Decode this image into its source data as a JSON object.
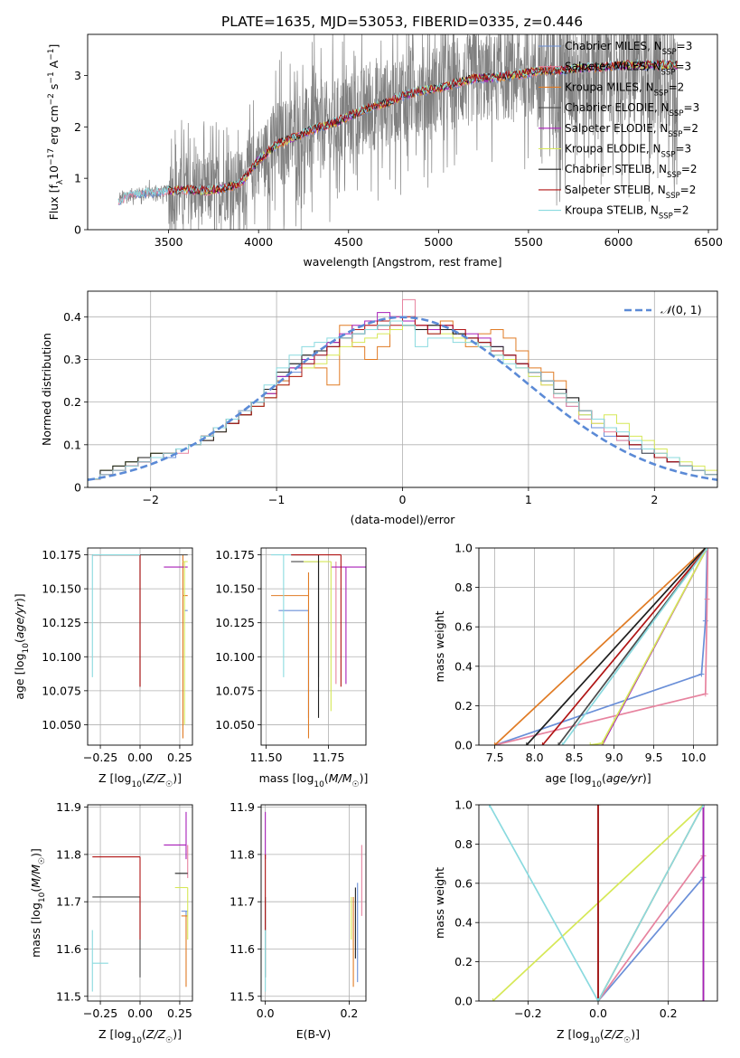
{
  "title": "PLATE=1635, MJD=53053, FIBERID=0335, z=0.446",
  "colors": {
    "series": [
      "#6a8fd8",
      "#e7839f",
      "#e07b24",
      "#4a4a4a",
      "#a81fb8",
      "#d6e857",
      "#1f1f1f",
      "#b01414",
      "#8adadf"
    ],
    "data_spectrum": "#808080",
    "normal_curve": "#5b8ad6",
    "grid": "#b0b0b0"
  },
  "models": [
    {
      "label": "Chabrier MILES, N",
      "sub": "SSP",
      "suffix": "=3",
      "name": "Chabrier MILES, NSSP=3"
    },
    {
      "label": "Salpeter MILES, N",
      "sub": "SSP",
      "suffix": "=3",
      "name": "Salpeter MILES, NSSP=3"
    },
    {
      "label": "Kroupa MILES, N",
      "sub": "SSP",
      "suffix": "=2",
      "name": "Kroupa MILES, NSSP=2"
    },
    {
      "label": "Chabrier ELODIE, N",
      "sub": "SSP",
      "suffix": "=3",
      "name": "Chabrier ELODIE, NSSP=3"
    },
    {
      "label": "Salpeter ELODIE, N",
      "sub": "SSP",
      "suffix": "=2",
      "name": "Salpeter ELODIE, NSSP=2"
    },
    {
      "label": "Kroupa ELODIE, N",
      "sub": "SSP",
      "suffix": "=3",
      "name": "Kroupa ELODIE, NSSP=3"
    },
    {
      "label": "Chabrier STELIB, N",
      "sub": "SSP",
      "suffix": "=2",
      "name": "Chabrier STELIB, NSSP=2"
    },
    {
      "label": "Salpeter STELIB, N",
      "sub": "SSP",
      "suffix": "=2",
      "name": "Salpeter STELIB, NSSP=2"
    },
    {
      "label": "Kroupa STELIB, N",
      "sub": "SSP",
      "suffix": "=2",
      "name": "Kroupa STELIB, NSSP=2"
    }
  ],
  "chart_data": [
    {
      "id": "spectrum",
      "type": "line",
      "xlabel": "wavelength [Angstrom, rest frame]",
      "ylabel": "Flux [f_λ 10^-17 erg cm^-2 s^-1 A^-1]",
      "xlim": [
        3050,
        6550
      ],
      "ylim": [
        0,
        3.8
      ],
      "xticks": [
        3500,
        4000,
        4500,
        5000,
        5500,
        6000,
        6500
      ],
      "yticks": [
        0,
        1,
        2,
        3
      ],
      "x_range_data": [
        3220,
        6330
      ],
      "grid": false,
      "legend": "upper right",
      "continuum_model": {
        "x": [
          3220,
          3300,
          3400,
          3500,
          3600,
          3700,
          3800,
          3900,
          4000,
          4100,
          4200,
          4300,
          4400,
          4500,
          4600,
          4700,
          4800,
          4900,
          5000,
          5100,
          5200,
          5300,
          5400,
          5500,
          5600,
          5700,
          5800,
          5900,
          6000,
          6100,
          6200,
          6330
        ],
        "y": [
          0.55,
          0.7,
          0.72,
          0.75,
          0.78,
          0.75,
          0.8,
          0.9,
          1.35,
          1.65,
          1.8,
          1.95,
          2.05,
          2.2,
          2.35,
          2.45,
          2.6,
          2.7,
          2.75,
          2.85,
          2.95,
          2.95,
          3.0,
          3.05,
          3.1,
          3.1,
          3.15,
          3.15,
          3.2,
          3.2,
          3.2,
          3.2
        ]
      }
    },
    {
      "id": "residuals",
      "type": "histogram",
      "xlabel": "(data-model)/error",
      "ylabel": "Normed distribution",
      "xlim": [
        -2.5,
        2.5
      ],
      "ylim": [
        0,
        0.46
      ],
      "xticks": [
        -2,
        -1,
        0,
        1,
        2
      ],
      "yticks": [
        0.0,
        0.1,
        0.2,
        0.3,
        0.4
      ],
      "grid": true,
      "legend": "upper right",
      "legend_label": "N(0,1)",
      "bins": [
        -2.5,
        -2.4,
        -2.3,
        -2.2,
        -2.1,
        -2.0,
        -1.9,
        -1.8,
        -1.7,
        -1.6,
        -1.5,
        -1.4,
        -1.3,
        -1.2,
        -1.1,
        -1.0,
        -0.9,
        -0.8,
        -0.7,
        -0.6,
        -0.5,
        -0.4,
        -0.3,
        -0.2,
        -0.1,
        0.0,
        0.1,
        0.2,
        0.3,
        0.4,
        0.5,
        0.6,
        0.7,
        0.8,
        0.9,
        1.0,
        1.1,
        1.2,
        1.3,
        1.4,
        1.5,
        1.6,
        1.7,
        1.8,
        1.9,
        2.0,
        2.1,
        2.2,
        2.3,
        2.4,
        2.5
      ],
      "series": [
        {
          "values": [
            0.02,
            0.04,
            0.05,
            0.06,
            0.07,
            0.08,
            0.07,
            0.09,
            0.1,
            0.12,
            0.14,
            0.16,
            0.17,
            0.19,
            0.22,
            0.25,
            0.27,
            0.29,
            0.31,
            0.33,
            0.35,
            0.36,
            0.37,
            0.38,
            0.37,
            0.38,
            0.37,
            0.36,
            0.37,
            0.36,
            0.35,
            0.34,
            0.33,
            0.31,
            0.29,
            0.26,
            0.25,
            0.22,
            0.19,
            0.17,
            0.14,
            0.12,
            0.11,
            0.09,
            0.08,
            0.07,
            0.06,
            0.05,
            0.04,
            0.03
          ]
        },
        {
          "values": [
            0.02,
            0.03,
            0.04,
            0.05,
            0.06,
            0.07,
            0.08,
            0.08,
            0.1,
            0.11,
            0.13,
            0.15,
            0.18,
            0.2,
            0.23,
            0.26,
            0.28,
            0.3,
            0.32,
            0.34,
            0.35,
            0.36,
            0.38,
            0.37,
            0.39,
            0.44,
            0.38,
            0.37,
            0.38,
            0.36,
            0.35,
            0.33,
            0.31,
            0.3,
            0.28,
            0.27,
            0.24,
            0.21,
            0.19,
            0.16,
            0.15,
            0.13,
            0.11,
            0.1,
            0.09,
            0.07,
            0.06,
            0.05,
            0.04,
            0.03
          ]
        },
        {
          "values": [
            0.02,
            0.03,
            0.04,
            0.05,
            0.06,
            0.07,
            0.08,
            0.09,
            0.1,
            0.12,
            0.14,
            0.16,
            0.18,
            0.2,
            0.22,
            0.25,
            0.28,
            0.3,
            0.28,
            0.24,
            0.38,
            0.33,
            0.3,
            0.33,
            0.4,
            0.39,
            0.38,
            0.37,
            0.39,
            0.36,
            0.33,
            0.36,
            0.37,
            0.35,
            0.32,
            0.28,
            0.27,
            0.25,
            0.2,
            0.18,
            0.16,
            0.14,
            0.12,
            0.1,
            0.09,
            0.08,
            0.06,
            0.05,
            0.04,
            0.03
          ]
        },
        {
          "values": [
            0.02,
            0.04,
            0.05,
            0.06,
            0.07,
            0.08,
            0.08,
            0.09,
            0.1,
            0.12,
            0.14,
            0.15,
            0.17,
            0.19,
            0.21,
            0.26,
            0.29,
            0.31,
            0.32,
            0.34,
            0.35,
            0.37,
            0.37,
            0.38,
            0.39,
            0.39,
            0.37,
            0.38,
            0.37,
            0.36,
            0.35,
            0.34,
            0.32,
            0.3,
            0.29,
            0.27,
            0.25,
            0.23,
            0.21,
            0.18,
            0.16,
            0.14,
            0.12,
            0.1,
            0.08,
            0.07,
            0.06,
            0.05,
            0.04,
            0.03
          ]
        },
        {
          "values": [
            0.02,
            0.03,
            0.04,
            0.05,
            0.06,
            0.07,
            0.08,
            0.09,
            0.1,
            0.11,
            0.13,
            0.15,
            0.18,
            0.2,
            0.22,
            0.26,
            0.28,
            0.3,
            0.32,
            0.34,
            0.36,
            0.38,
            0.39,
            0.41,
            0.4,
            0.39,
            0.38,
            0.37,
            0.38,
            0.37,
            0.36,
            0.35,
            0.33,
            0.31,
            0.29,
            0.27,
            0.25,
            0.23,
            0.2,
            0.18,
            0.16,
            0.14,
            0.12,
            0.1,
            0.09,
            0.07,
            0.06,
            0.05,
            0.04,
            0.03
          ]
        },
        {
          "values": [
            0.02,
            0.04,
            0.05,
            0.06,
            0.07,
            0.08,
            0.08,
            0.09,
            0.1,
            0.11,
            0.13,
            0.15,
            0.17,
            0.19,
            0.21,
            0.24,
            0.26,
            0.28,
            0.29,
            0.31,
            0.33,
            0.34,
            0.35,
            0.36,
            0.37,
            0.38,
            0.37,
            0.36,
            0.36,
            0.35,
            0.34,
            0.33,
            0.31,
            0.3,
            0.28,
            0.26,
            0.24,
            0.22,
            0.2,
            0.17,
            0.15,
            0.17,
            0.15,
            0.12,
            0.11,
            0.09,
            0.07,
            0.06,
            0.05,
            0.04
          ]
        },
        {
          "values": [
            0.02,
            0.04,
            0.05,
            0.06,
            0.07,
            0.08,
            0.08,
            0.09,
            0.1,
            0.11,
            0.13,
            0.15,
            0.17,
            0.2,
            0.23,
            0.27,
            0.29,
            0.31,
            0.32,
            0.33,
            0.35,
            0.36,
            0.37,
            0.38,
            0.39,
            0.38,
            0.37,
            0.38,
            0.37,
            0.36,
            0.35,
            0.34,
            0.33,
            0.31,
            0.29,
            0.27,
            0.25,
            0.23,
            0.21,
            0.18,
            0.16,
            0.14,
            0.12,
            0.1,
            0.09,
            0.07,
            0.06,
            0.05,
            0.04,
            0.03
          ]
        },
        {
          "values": [
            0.02,
            0.03,
            0.04,
            0.05,
            0.06,
            0.07,
            0.08,
            0.09,
            0.1,
            0.12,
            0.14,
            0.15,
            0.17,
            0.19,
            0.21,
            0.24,
            0.26,
            0.29,
            0.31,
            0.33,
            0.35,
            0.37,
            0.38,
            0.39,
            0.38,
            0.4,
            0.38,
            0.36,
            0.38,
            0.37,
            0.35,
            0.34,
            0.32,
            0.31,
            0.29,
            0.27,
            0.25,
            0.22,
            0.2,
            0.18,
            0.16,
            0.14,
            0.12,
            0.1,
            0.09,
            0.07,
            0.06,
            0.05,
            0.04,
            0.03
          ]
        },
        {
          "values": [
            0.02,
            0.03,
            0.04,
            0.05,
            0.06,
            0.07,
            0.08,
            0.09,
            0.1,
            0.12,
            0.14,
            0.16,
            0.18,
            0.2,
            0.24,
            0.28,
            0.31,
            0.33,
            0.34,
            0.35,
            0.35,
            0.36,
            0.37,
            0.38,
            0.39,
            0.38,
            0.33,
            0.35,
            0.35,
            0.34,
            0.34,
            0.33,
            0.31,
            0.29,
            0.28,
            0.27,
            0.25,
            0.22,
            0.2,
            0.18,
            0.16,
            0.14,
            0.13,
            0.11,
            0.09,
            0.08,
            0.07,
            0.05,
            0.04,
            0.03
          ]
        }
      ]
    },
    {
      "id": "age_vs_Z",
      "type": "errorbar",
      "xlabel": "Z [log10(Z/Z☉)]",
      "ylabel": "age [log10(age/yr)]",
      "xlim": [
        -0.33,
        0.33
      ],
      "ylim": [
        10.035,
        10.18
      ],
      "xticks": [
        "-0.25",
        "0.00",
        "0.25"
      ],
      "yticks": [
        "10.050",
        "10.075",
        "10.100",
        "10.125",
        "10.150",
        "10.175"
      ],
      "grid": true
    },
    {
      "id": "age_vs_mass",
      "type": "errorbar",
      "xlabel": "mass [log10(M/M☉)]",
      "ylabel": "",
      "xlim": [
        11.48,
        11.9
      ],
      "ylim": [
        10.035,
        10.18
      ],
      "xticks": [
        "11.50",
        "11.75"
      ],
      "yticks": [
        "10.050",
        "10.075",
        "10.100",
        "10.125",
        "10.150",
        "10.175"
      ],
      "grid": true
    },
    {
      "id": "mass_weight_vs_age",
      "type": "line",
      "xlabel": "age [log10(age/yr)]",
      "ylabel": "mass weight",
      "xlim": [
        7.3,
        10.3
      ],
      "ylim": [
        0,
        1
      ],
      "xticks": [
        "7.5",
        "8.0",
        "8.5",
        "9.0",
        "9.5",
        "10.0"
      ],
      "yticks": [
        "0.0",
        "0.2",
        "0.4",
        "0.6",
        "0.8",
        "1.0"
      ],
      "grid": true,
      "series": [
        {
          "x": [
            7.5,
            10.1,
            10.15,
            10.17
          ],
          "y": [
            0.0,
            0.36,
            0.63,
            1.0
          ]
        },
        {
          "x": [
            7.5,
            10.15,
            10.17,
            10.18
          ],
          "y": [
            0.0,
            0.26,
            0.74,
            1.0
          ]
        },
        {
          "x": [
            7.5,
            10.15
          ],
          "y": [
            0.0,
            1.0
          ]
        },
        {
          "x": [
            8.3,
            10.17
          ],
          "y": [
            0.0,
            1.0
          ]
        },
        {
          "x": [
            8.85,
            10.17
          ],
          "y": [
            0.0,
            1.0
          ]
        },
        {
          "x": [
            8.7,
            8.85,
            10.17
          ],
          "y": [
            0.0,
            0.01,
            1.0
          ]
        },
        {
          "x": [
            7.9,
            10.15
          ],
          "y": [
            0.0,
            1.0
          ]
        },
        {
          "x": [
            8.1,
            10.17
          ],
          "y": [
            0.0,
            1.0
          ]
        },
        {
          "x": [
            8.35,
            10.17
          ],
          "y": [
            0.0,
            1.0
          ]
        }
      ]
    },
    {
      "id": "mass_vs_Z",
      "type": "errorbar",
      "xlabel": "Z [log10(Z/Z☉)]",
      "ylabel": "mass [log10(M/M☉)]",
      "xlim": [
        -0.33,
        0.33
      ],
      "ylim": [
        11.49,
        11.905
      ],
      "xticks": [
        "-0.25",
        "0.00",
        "0.25"
      ],
      "yticks": [
        "11.5",
        "11.6",
        "11.7",
        "11.8",
        "11.9"
      ],
      "grid": true
    },
    {
      "id": "mass_vs_EBV",
      "type": "errorbar",
      "xlabel": "E(B-V)",
      "ylabel": "",
      "xlim": [
        -0.01,
        0.24
      ],
      "ylim": [
        11.49,
        11.905
      ],
      "xticks": [
        "0.0",
        "0.2"
      ],
      "yticks": [
        "11.5",
        "11.6",
        "11.7",
        "11.8",
        "11.9"
      ],
      "grid": true
    },
    {
      "id": "mass_weight_vs_Z",
      "type": "line",
      "xlabel": "Z [log10(Z/Z☉)]",
      "ylabel": "mass weight",
      "xlim": [
        -0.34,
        0.34
      ],
      "ylim": [
        0,
        1
      ],
      "xticks": [
        "−0.2",
        "0.0",
        "0.2"
      ],
      "yticks": [
        "0.0",
        "0.2",
        "0.4",
        "0.6",
        "0.8",
        "1.0"
      ],
      "grid": true,
      "series": [
        {
          "x": [
            0.0,
            0.3,
            0.3
          ],
          "y": [
            0.0,
            0.63,
            1.0
          ]
        },
        {
          "x": [
            0.0,
            0.3,
            0.3
          ],
          "y": [
            0.0,
            0.74,
            1.0
          ]
        },
        {
          "x": [
            0.0,
            0.3
          ],
          "y": [
            0.0,
            1.0
          ]
        },
        {
          "x": [
            0.3,
            0.3
          ],
          "y": [
            0.0,
            1.0
          ]
        },
        {
          "x": [
            0.3,
            0.3
          ],
          "y": [
            0.0,
            1.0
          ]
        },
        {
          "x": [
            -0.3,
            0.3
          ],
          "y": [
            0.0,
            1.0
          ]
        },
        {
          "x": [
            0.0,
            0.0
          ],
          "y": [
            0.0,
            1.0
          ]
        },
        {
          "x": [
            0.0,
            0.0
          ],
          "y": [
            0.0,
            1.0
          ]
        },
        {
          "x": [
            -0.31,
            0.0,
            0.3
          ],
          "y": [
            1.0,
            0.0,
            1.0
          ]
        }
      ]
    }
  ]
}
